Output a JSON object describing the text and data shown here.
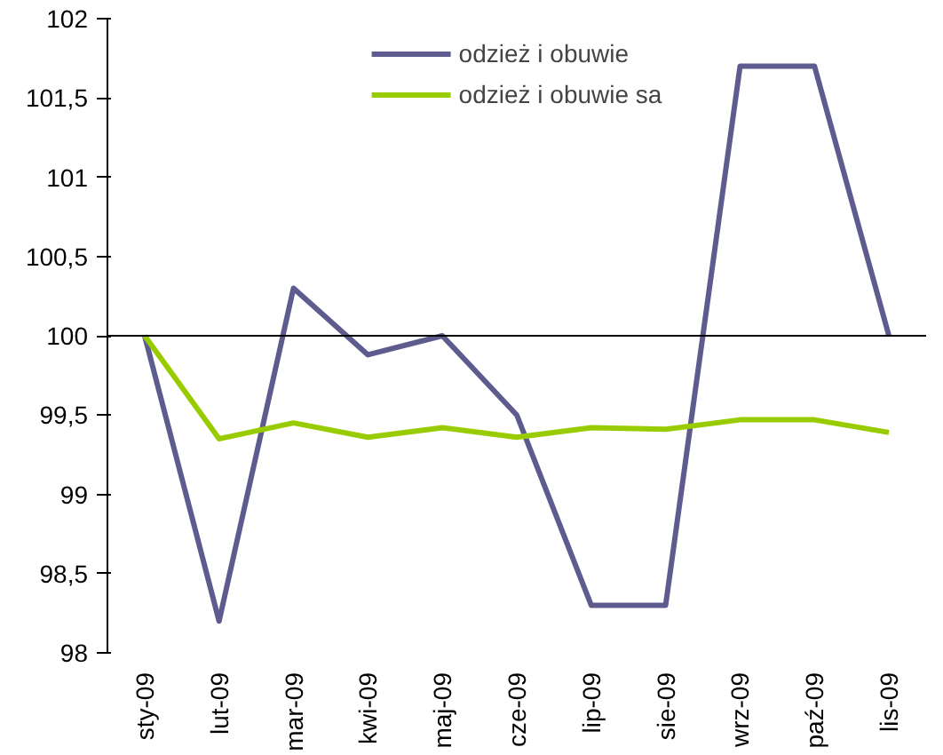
{
  "chart_data": {
    "type": "line",
    "categories": [
      "sty-09",
      "lut-09",
      "mar-09",
      "kwi-09",
      "maj-09",
      "cze-09",
      "lip-09",
      "sie-09",
      "wrz-09",
      "paź-09",
      "lis-09"
    ],
    "series": [
      {
        "name": "odzież i obuwie",
        "color": "#5e5b8f",
        "values": [
          100,
          98.2,
          100.3,
          99.88,
          100,
          99.5,
          98.3,
          98.3,
          101.7,
          101.7,
          100
        ]
      },
      {
        "name": "odzież i obuwie sa",
        "color": "#99cc00",
        "values": [
          100,
          99.35,
          99.45,
          99.36,
          99.42,
          99.36,
          99.42,
          99.41,
          99.47,
          99.47,
          99.39
        ]
      }
    ],
    "ylim": [
      98,
      102
    ],
    "yticks": [
      98,
      {
        "value": 98.5,
        "label": "98,5"
      },
      99,
      {
        "value": 99.5,
        "label": "99,5"
      },
      100,
      {
        "value": 100.5,
        "label": "100,5"
      },
      101,
      {
        "value": 101.5,
        "label": "101,5"
      },
      102
    ],
    "ref_lines": [
      {
        "axis": "y",
        "value": 100,
        "color": "#000000"
      }
    ],
    "grid": false,
    "legend": "top",
    "marker": "none",
    "line_style": "solid"
  }
}
